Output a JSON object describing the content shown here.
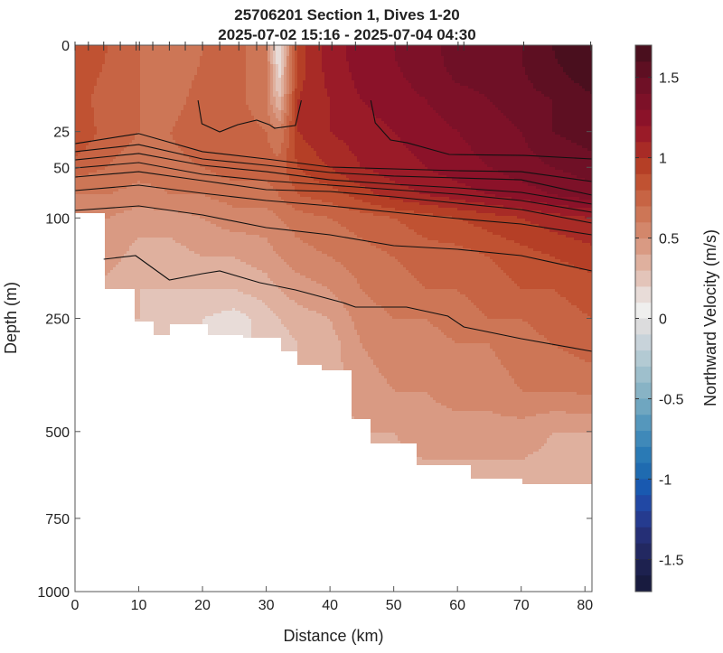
{
  "chart_data": {
    "type": "heatmap",
    "subtype": "filled-contour-section",
    "title": [
      "25706201 Section 1, Dives 1-20",
      "2025-07-02 15:16 - 2025-07-04 04:30"
    ],
    "xlabel": "Distance (km)",
    "ylabel": "Depth (m)",
    "colorbar_label": "Northward Velocity (m/s)",
    "xlim": [
      0,
      81.1
    ],
    "ylim": [
      0,
      1000
    ],
    "y_scale": "sqrt",
    "y_reversed": true,
    "clim": [
      -1.7,
      1.7
    ],
    "contour_step": 0.1,
    "xticks": [
      0,
      10,
      20,
      30,
      40,
      50,
      60,
      70,
      80
    ],
    "xtick_labels": [
      "0",
      "10",
      "20",
      "30",
      "40",
      "50",
      "60",
      "70",
      "80"
    ],
    "yticks": [
      0,
      25,
      50,
      100,
      250,
      500,
      750,
      1000
    ],
    "ytick_labels": [
      "0",
      "25",
      "50",
      "100",
      "250",
      "500",
      "750",
      "1000"
    ],
    "cbar_ticks": [
      1.5,
      1,
      0.5,
      0,
      -0.5,
      -1,
      -1.5
    ],
    "cbar_tick_labels": [
      "1.5",
      "1",
      "0.5",
      "0",
      "-0.5",
      "-1",
      "-1.5"
    ],
    "dive_positions_km": [
      0,
      2.1,
      4.5,
      7.1,
      9.6,
      10.1,
      12.2,
      14.8,
      17.3,
      20,
      22.7,
      25.7,
      28.5,
      30.1,
      31.2,
      34.6,
      38.3,
      40.3,
      44,
      50.2,
      52.1,
      60.1,
      61,
      70.4,
      80.9
    ],
    "colormap": {
      "positive": [
        "#efefee",
        "#e8dcd8",
        "#e3c4b9",
        "#dfb09e",
        "#d99a83",
        "#d3876b",
        "#cd7656",
        "#c76444",
        "#c05232",
        "#b53f26",
        "#a82b26",
        "#9a1b28",
        "#8b1229",
        "#7d1128",
        "#6f1026",
        "#5e0f22",
        "#4a0f1e"
      ],
      "negative": [
        "#dcdcdd",
        "#c8d3da",
        "#b3cad3",
        "#9ebfcc",
        "#88b3c5",
        "#6fa6c0",
        "#5597bc",
        "#3f89b9",
        "#2a7ab5",
        "#1f6bb0",
        "#1959b0",
        "#2148a4",
        "#253b8f",
        "#252f76",
        "#222861",
        "#1d214f",
        "#181b3f"
      ]
    },
    "grid": {
      "x_km": [
        0,
        5,
        10,
        15,
        20,
        25,
        30,
        32,
        35,
        40,
        45,
        50,
        55,
        60,
        65,
        70,
        75,
        81.1
      ],
      "depth_m": [
        0,
        10,
        25,
        50,
        75,
        100,
        150,
        200,
        250,
        300,
        400,
        500,
        650
      ],
      "velocity": [
        [
          0.85,
          0.8,
          0.7,
          0.65,
          0.7,
          0.75,
          0.6,
          0.1,
          0.95,
          1.15,
          1.25,
          1.3,
          1.35,
          1.45,
          1.45,
          1.5,
          1.6,
          1.68
        ],
        [
          0.85,
          0.75,
          0.7,
          0.65,
          0.75,
          0.75,
          0.6,
          0.3,
          1.0,
          1.1,
          1.2,
          1.25,
          1.3,
          1.35,
          1.4,
          1.45,
          1.5,
          1.58
        ],
        [
          0.9,
          0.75,
          0.7,
          0.7,
          0.8,
          0.8,
          0.7,
          0.6,
          1.0,
          1.1,
          1.15,
          1.2,
          1.25,
          1.3,
          1.35,
          1.4,
          1.5,
          1.55
        ],
        [
          0.75,
          0.7,
          0.65,
          0.65,
          0.7,
          0.75,
          0.75,
          0.75,
          0.9,
          1.0,
          1.1,
          1.15,
          1.2,
          1.25,
          1.3,
          1.35,
          1.4,
          1.45
        ],
        [
          0.6,
          0.6,
          0.55,
          0.6,
          0.6,
          0.65,
          0.65,
          0.7,
          0.8,
          0.85,
          0.95,
          1.05,
          1.1,
          1.15,
          1.2,
          1.25,
          1.3,
          1.35
        ],
        [
          0.55,
          0.5,
          0.45,
          0.45,
          0.5,
          0.55,
          0.55,
          0.6,
          0.65,
          0.7,
          0.75,
          0.8,
          0.85,
          0.9,
          0.95,
          1.0,
          1.05,
          1.1
        ],
        [
          0.5,
          0.45,
          0.35,
          0.35,
          0.4,
          0.4,
          0.45,
          0.5,
          0.55,
          0.6,
          0.65,
          0.7,
          0.75,
          0.75,
          0.8,
          0.85,
          0.9,
          0.95
        ],
        [
          0.45,
          0.35,
          0.3,
          0.3,
          0.3,
          0.3,
          0.35,
          0.4,
          0.45,
          0.5,
          0.6,
          0.65,
          0.7,
          0.7,
          0.75,
          0.8,
          0.8,
          0.85
        ],
        [
          0.4,
          0.3,
          0.3,
          0.25,
          0.2,
          0.15,
          0.25,
          0.3,
          0.35,
          0.4,
          0.55,
          0.6,
          0.6,
          0.65,
          0.7,
          0.7,
          0.75,
          0.8
        ],
        [
          0.35,
          0.3,
          0.25,
          0.2,
          0.2,
          0.2,
          0.2,
          0.25,
          0.3,
          0.35,
          0.5,
          0.55,
          0.55,
          0.6,
          0.6,
          0.65,
          0.7,
          0.75
        ],
        [
          0.35,
          0.3,
          0.25,
          0.2,
          0.2,
          0.2,
          0.2,
          0.25,
          0.3,
          0.35,
          0.45,
          0.5,
          0.5,
          0.55,
          0.55,
          0.6,
          0.6,
          0.62
        ],
        [
          0.35,
          0.3,
          0.25,
          0.2,
          0.2,
          0.2,
          0.2,
          0.25,
          0.3,
          0.35,
          0.4,
          0.4,
          0.45,
          0.45,
          0.45,
          0.45,
          0.4,
          0.4
        ],
        [
          0.35,
          0.3,
          0.25,
          0.2,
          0.2,
          0.2,
          0.2,
          0.25,
          0.3,
          0.35,
          0.4,
          0.35,
          0.35,
          0.35,
          0.35,
          0.35,
          0.35,
          0.4
        ]
      ]
    },
    "data_max_depth": [
      [
        0,
        4.8,
        93
      ],
      [
        4.8,
        9.5,
        199
      ],
      [
        9.5,
        12.3,
        254
      ],
      [
        12.3,
        15,
        280
      ],
      [
        15,
        21,
        263
      ],
      [
        21,
        26.5,
        280
      ],
      [
        26.5,
        32.2,
        289
      ],
      [
        32.2,
        35,
        316
      ],
      [
        35,
        38.6,
        344
      ],
      [
        38.6,
        43.5,
        354
      ],
      [
        43.5,
        46.4,
        471
      ],
      [
        46.4,
        53.5,
        529
      ],
      [
        53.5,
        62,
        591
      ],
      [
        62,
        70,
        630
      ],
      [
        70,
        81.1,
        643
      ]
    ],
    "contour_lines": [
      {
        "x": [
          0,
          10,
          20,
          30,
          40,
          50,
          60,
          70,
          81.1
        ],
        "depth": [
          32.5,
          26.2,
          38.0,
          43.4,
          49.8,
          51.3,
          52.8,
          53.6,
          62.3
        ]
      },
      {
        "x": [
          0,
          10,
          20,
          30,
          40,
          50,
          60,
          70,
          81.1
        ],
        "depth": [
          38.0,
          33.1,
          43.4,
          48.3,
          54.3,
          57.4,
          59.0,
          60.7,
          75.3
        ]
      },
      {
        "x": [
          0,
          10,
          20,
          30,
          40,
          50,
          60,
          70,
          81.1
        ],
        "depth": [
          44.1,
          39.3,
          48.3,
          53.6,
          60.7,
          64.8,
          68.2,
          72.6,
          84.6
        ]
      },
      {
        "x": [
          0,
          10,
          20,
          30,
          40,
          50,
          60,
          70,
          81.1
        ],
        "depth": [
          50.5,
          46.2,
          55.9,
          61.5,
          65.6,
          69.9,
          74.4,
          80.8,
          93.5
        ]
      },
      {
        "x": [
          0,
          10,
          20,
          30,
          40,
          50,
          60,
          70,
          81.1
        ],
        "depth": [
          58.2,
          53.6,
          61.5,
          69.9,
          71.7,
          77.1,
          83.7,
          90.5,
          106
        ]
      },
      {
        "x": [
          0,
          10,
          20,
          30,
          40,
          50,
          60,
          70,
          81.1
        ],
        "depth": [
          70.8,
          65.6,
          73.5,
          80.8,
          86.6,
          93.5,
          100.7,
          107.1,
          120.5
        ]
      },
      {
        "x": [
          0,
          10,
          20,
          30,
          40,
          50,
          60,
          70,
          81.1
        ],
        "depth": [
          91.5,
          86.6,
          96.6,
          111.5,
          120.5,
          134.7,
          139.6,
          148.3,
          170.8
        ]
      },
      {
        "x": [
          4.5,
          9.5,
          14.8,
          20,
          22.7,
          29,
          34.6,
          42,
          44,
          52,
          58.5,
          61,
          70,
          81.1
        ],
        "depth": [
          153.5,
          148.3,
          184.7,
          174.9,
          170.8,
          189,
          200.7,
          221.9,
          229.8,
          229.8,
          245.9,
          266,
          288.6,
          314
        ]
      },
      {
        "x": [
          19.3,
          19.9,
          22.7,
          25.5,
          28.5,
          30.5,
          31.3,
          34.6,
          35.5
        ],
        "depth": [
          10.2,
          20.7,
          25.2,
          21.2,
          18.8,
          21.2,
          23.1,
          21.6,
          10.2
        ]
      },
      {
        "x": [
          46.4,
          47.1,
          49.5,
          52.1,
          58.7,
          70.5,
          81.1
        ],
        "depth": [
          10.2,
          20.2,
          30.1,
          31.9,
          40.0,
          40.7,
          43.4
        ]
      }
    ]
  }
}
